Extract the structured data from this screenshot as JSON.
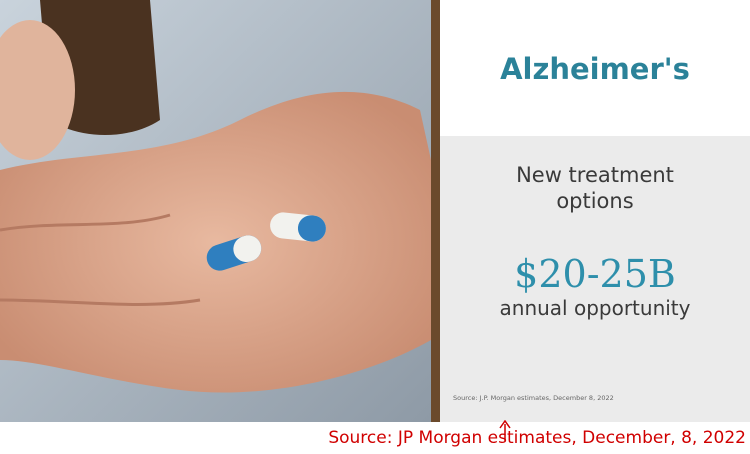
{
  "slide": {
    "title": "Alzheimer's",
    "subtitle": "New treatment options",
    "figure": "$20-25B",
    "figure_caption": "annual opportunity",
    "source": "Source: J.P. Morgan estimates, December 8, 2022"
  },
  "annotation": {
    "text": "Source: JP Morgan estimates, December, 8, 2022"
  }
}
